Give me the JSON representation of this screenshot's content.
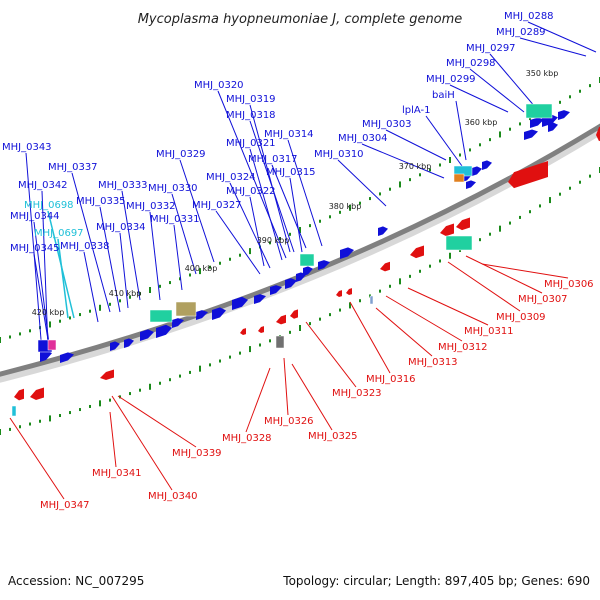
{
  "title": "Mycoplasma hyopneumoniae J, complete genome",
  "footer": {
    "accession": "Accession: NC_007295",
    "stats": "Topology: circular; Length: 897,405 bp; Genes: 690"
  },
  "ticks": [
    "350 kbp",
    "360 kbp",
    "370 kbp",
    "380 kbp",
    "390 kbp",
    "400 kbp",
    "410 kbp",
    "420 kbp"
  ],
  "colors": {
    "forward": "#1010d8",
    "reverse": "#e01010",
    "cyan": "#20c0d8",
    "teal": "#20d0a0",
    "backbone": "#808080",
    "dots": "#1a8a1a"
  },
  "forward_labels": [
    "MHJ_0288",
    "MHJ_0289",
    "MHJ_0297",
    "MHJ_0298",
    "MHJ_0299",
    "baiH",
    "lplA-1",
    "MHJ_0303",
    "MHJ_0304",
    "MHJ_0310",
    "MHJ_0314",
    "MHJ_0317",
    "MHJ_0315",
    "MHJ_0318",
    "MHJ_0319",
    "MHJ_0320",
    "MHJ_0321",
    "MHJ_0324",
    "MHJ_0322",
    "MHJ_0327",
    "MHJ_0329",
    "MHJ_0330",
    "MHJ_0331",
    "MHJ_0332",
    "MHJ_0333",
    "MHJ_0334",
    "MHJ_0335",
    "MHJ_0337",
    "MHJ_0338",
    "MHJ_0343",
    "MHJ_0342",
    "MHJ_0344",
    "MHJ_0345"
  ],
  "cyan_labels": [
    "MHJ_0698",
    "MHJ_0697"
  ],
  "reverse_labels": [
    "MHJ_0306",
    "MHJ_0307",
    "MHJ_0309",
    "MHJ_0311",
    "MHJ_0312",
    "MHJ_0313",
    "MHJ_0316",
    "MHJ_0323",
    "MHJ_0325",
    "MHJ_0326",
    "MHJ_0328",
    "MHJ_0339",
    "MHJ_0340",
    "MHJ_0341",
    "MHJ_0347"
  ]
}
